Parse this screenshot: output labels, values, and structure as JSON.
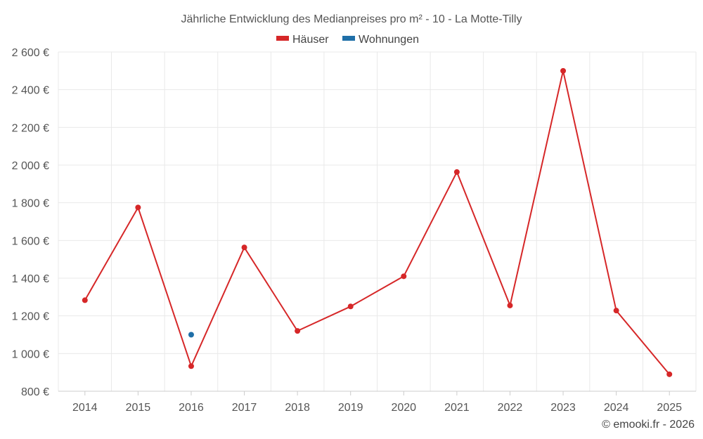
{
  "chart_data": {
    "type": "line",
    "title": "Jährliche Entwicklung des Medianpreises pro m² - 10 - La Motte-Tilly",
    "categories": [
      "2014",
      "2015",
      "2016",
      "2017",
      "2018",
      "2019",
      "2020",
      "2021",
      "2022",
      "2023",
      "2024",
      "2025"
    ],
    "series": [
      {
        "name": "Häuser",
        "color": "#d62728",
        "values": [
          1283,
          1775,
          933,
          1563,
          1120,
          1250,
          1410,
          1963,
          1255,
          2500,
          1228,
          890
        ]
      },
      {
        "name": "Wohnungen",
        "color": "#1f6fa8",
        "values": [
          null,
          null,
          1100,
          null,
          null,
          null,
          null,
          null,
          null,
          null,
          null,
          null
        ]
      }
    ],
    "ylim": [
      800,
      2600
    ],
    "yticks": [
      800,
      1000,
      1200,
      1400,
      1600,
      1800,
      2000,
      2200,
      2400,
      2600
    ],
    "ytick_labels": [
      "800 €",
      "1 000 €",
      "1 200 €",
      "1 400 €",
      "1 600 €",
      "1 800 €",
      "2 000 €",
      "2 200 €",
      "2 400 €",
      "2 600 €"
    ],
    "xlabel": "",
    "ylabel": "",
    "grid": true,
    "legend_position": "top-center"
  },
  "credit": "© emooki.fr - 2026"
}
